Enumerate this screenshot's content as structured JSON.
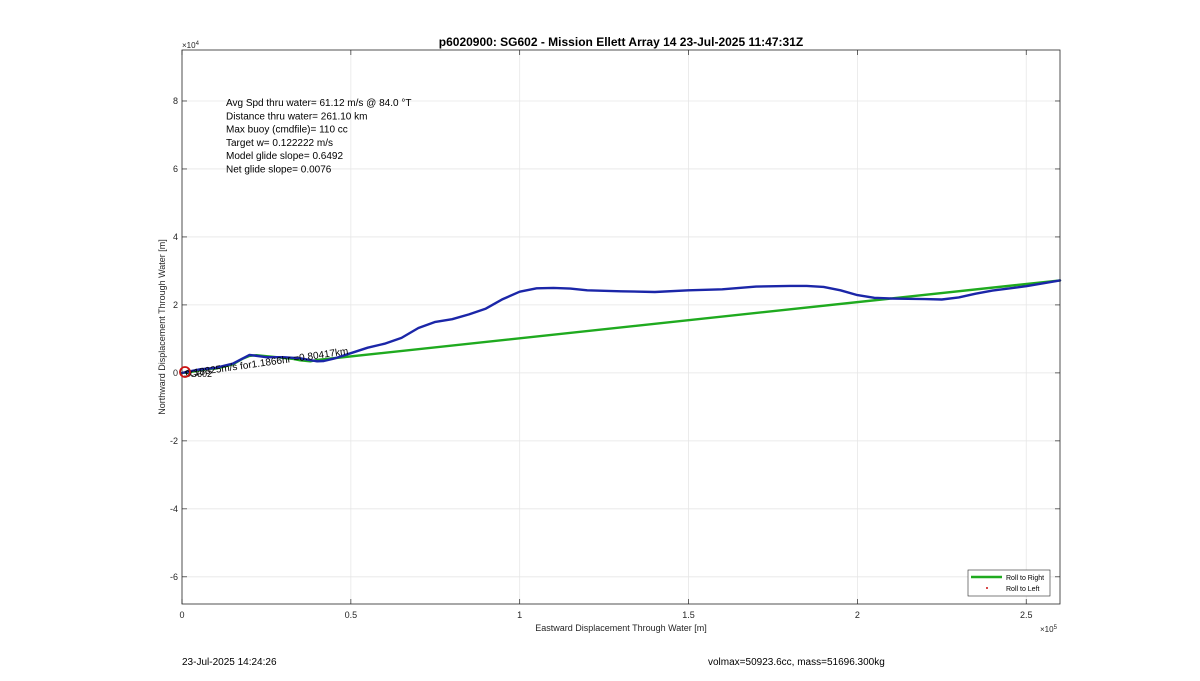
{
  "chart_data": {
    "type": "line",
    "title": "p6020900: SG602 - Mission Ellett Array 14 23-Jul-2025 11:47:31Z",
    "xlabel": "Eastward Displacement Through Water [m]",
    "ylabel": "Northward Displacement Through Water [m]",
    "x_exponent_label": "× 10^5",
    "y_exponent_label": "× 10^4",
    "xlim": [
      0,
      260000
    ],
    "ylim": [
      -68000,
      95000
    ],
    "x_ticks": [
      0,
      50000,
      100000,
      150000,
      200000,
      250000
    ],
    "x_tick_labels": [
      "0",
      "0.5",
      "1",
      "1.5",
      "2",
      "2.5"
    ],
    "y_ticks": [
      -60000,
      -40000,
      -20000,
      0,
      20000,
      40000,
      60000,
      80000
    ],
    "y_tick_labels": [
      "-6",
      "-4",
      "-2",
      "0",
      "2",
      "4",
      "6",
      "8"
    ],
    "grid": true,
    "legend_placement": "bottom-right",
    "stats_lines": [
      "Avg Spd thru water= 61.12 m/s @  84.0 °T",
      "Distance thru water= 261.10 km",
      "Max buoy (cmdfile)= 110 cc",
      "Target w= 0.122222 m/s",
      "Model glide slope= 0.6492",
      "Net glide slope= 0.0076"
    ],
    "current_annotation": "0.18825m/s for1.1866hr =0.80417km",
    "start_label": "SG602",
    "series": [
      {
        "name": "Roll to Right",
        "color": "#1faa1f",
        "x": [
          0,
          2000,
          4000,
          6000,
          8000,
          10000,
          12000,
          15000,
          18000,
          20000,
          22000,
          25000,
          28000,
          30000,
          33000,
          35000,
          38000,
          40000,
          260000
        ],
        "y": [
          0,
          200,
          500,
          900,
          1200,
          1300,
          1700,
          2500,
          4200,
          5000,
          5200,
          4900,
          4600,
          4400,
          4100,
          3700,
          3400,
          3800,
          27200
        ]
      },
      {
        "name": "",
        "color": "#1b26a8",
        "x": [
          0,
          5000,
          10000,
          15000,
          20000,
          25000,
          30000,
          35000,
          40000,
          42000,
          45000,
          50000,
          55000,
          60000,
          65000,
          70000,
          75000,
          80000,
          85000,
          90000,
          95000,
          100000,
          105000,
          110000,
          115000,
          120000,
          130000,
          140000,
          150000,
          160000,
          170000,
          180000,
          185000,
          190000,
          195000,
          200000,
          205000,
          210000,
          215000,
          220000,
          225000,
          230000,
          235000,
          240000,
          250000,
          260000
        ],
        "y": [
          0,
          1000,
          1500,
          2700,
          5300,
          4600,
          4600,
          4300,
          3400,
          3500,
          4200,
          5800,
          7400,
          8600,
          10300,
          13200,
          15000,
          15800,
          17200,
          18900,
          21700,
          23900,
          24900,
          25000,
          24800,
          24300,
          24000,
          23800,
          24300,
          24600,
          25400,
          25600,
          25600,
          25300,
          24300,
          22900,
          22100,
          21900,
          21800,
          21700,
          21600,
          22200,
          23300,
          24200,
          25500,
          27200
        ]
      },
      {
        "name": "Roll to Left",
        "color": "#cc1111",
        "x": [],
        "y": []
      }
    ]
  },
  "footer": {
    "left": "23-Jul-2025 14:24:26",
    "right": "volmax=50923.6cc, mass=51696.300kg"
  }
}
